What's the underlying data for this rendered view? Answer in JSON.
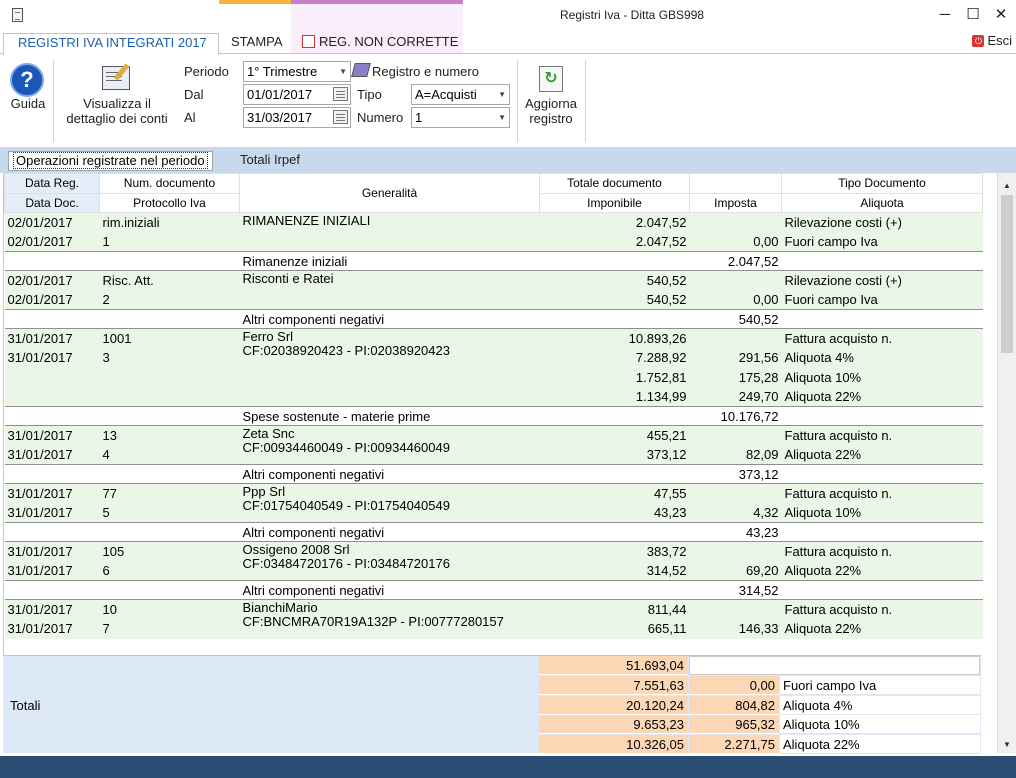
{
  "window": {
    "title": "Registri Iva - Ditta GBS998",
    "min": "─",
    "max": "☐",
    "close": "✕"
  },
  "tabs": {
    "main": "REGISTRI IVA INTEGRATI 2017",
    "stampa": "STAMPA",
    "reg": "REG. NON CORRETTE",
    "esci": "Esci"
  },
  "ribbon": {
    "guida": "Guida",
    "visualizza1": "Visualizza il",
    "visualizza2": "dettaglio dei conti",
    "periodo_label": "Periodo",
    "periodo": "1° Trimestre",
    "dal_label": "Dal",
    "dal": "01/01/2017",
    "al_label": "Al",
    "al": "31/03/2017",
    "registro_label": "Registro e numero",
    "tipo_label": "Tipo",
    "tipo": "A=Acquisti",
    "numero_label": "Numero",
    "numero": "1",
    "aggiorna1": "Aggiorna",
    "aggiorna2": "registro"
  },
  "subtabs": {
    "active": "Operazioni registrate nel periodo",
    "other": "Totali Irpef"
  },
  "headers": {
    "data_reg": "Data Reg.",
    "num_doc": "Num. documento",
    "generalita": "Generalità",
    "totale_doc": "Totale documento",
    "tipo_doc": "Tipo Documento",
    "data_doc": "Data Doc.",
    "protocollo": "Protocollo Iva",
    "imponibile": "Imponibile",
    "imposta": "Imposta",
    "aliquota": "Aliquota"
  },
  "rows": {
    "r1": [
      "02/01/2017",
      "rim.iniziali",
      "RIMANENZE INIZIALI",
      "",
      "2.047,52",
      "",
      "Rilevazione costi (+)"
    ],
    "r2": [
      "02/01/2017",
      "1",
      "",
      "",
      "2.047,52",
      "0,00",
      "Fuori campo Iva"
    ],
    "s1": [
      "Rimanenze iniziali",
      "2.047,52"
    ],
    "r3": [
      "02/01/2017",
      "Risc. Att.",
      "Risconti e Ratei",
      "",
      "540,52",
      "",
      "Rilevazione costi (+)"
    ],
    "r4": [
      "02/01/2017",
      "2",
      "",
      "",
      "540,52",
      "0,00",
      "Fuori campo Iva"
    ],
    "s2": [
      "Altri componenti negativi",
      "540,52"
    ],
    "r5": [
      "31/01/2017",
      "1001",
      "Ferro Srl",
      "CF:02038920423 - PI:02038920423",
      "10.893,26",
      "",
      "Fattura acquisto n."
    ],
    "r6": [
      "31/01/2017",
      "3",
      "",
      "",
      "7.288,92",
      "291,56",
      "Aliquota 4%"
    ],
    "r7": [
      "",
      "",
      "",
      "",
      "1.752,81",
      "175,28",
      "Aliquota 10%"
    ],
    "r8": [
      "",
      "",
      "",
      "",
      "1.134,99",
      "249,70",
      "Aliquota 22%"
    ],
    "s3": [
      "Spese sostenute - materie prime",
      "10.176,72"
    ],
    "r9": [
      "31/01/2017",
      "13",
      "Zeta Snc",
      "CF:00934460049 - PI:00934460049",
      "455,21",
      "",
      "Fattura acquisto n."
    ],
    "r10": [
      "31/01/2017",
      "4",
      "",
      "",
      "373,12",
      "82,09",
      "Aliquota 22%"
    ],
    "s4": [
      "Altri componenti negativi",
      "373,12"
    ],
    "r11": [
      "31/01/2017",
      "77",
      "Ppp Srl",
      "CF:01754040549 - PI:01754040549",
      "47,55",
      "",
      "Fattura acquisto n."
    ],
    "r12": [
      "31/01/2017",
      "5",
      "",
      "",
      "43,23",
      "4,32",
      "Aliquota 10%"
    ],
    "s5": [
      "Altri componenti negativi",
      "43,23"
    ],
    "r13": [
      "31/01/2017",
      "105",
      "Ossigeno 2008 Srl",
      "CF:03484720176 - PI:03484720176",
      "383,72",
      "",
      "Fattura acquisto n."
    ],
    "r14": [
      "31/01/2017",
      "6",
      "",
      "",
      "314,52",
      "69,20",
      "Aliquota 22%"
    ],
    "s6": [
      "Altri componenti negativi",
      "314,52"
    ],
    "r15": [
      "31/01/2017",
      "10",
      "BianchiMario",
      "CF:BNCMRA70R19A132P - PI:00777280157",
      "811,44",
      "",
      "Fattura acquisto n."
    ],
    "r16": [
      "31/01/2017",
      "7",
      "",
      "",
      "665,11",
      "146,33",
      "Aliquota 22%"
    ]
  },
  "totals": {
    "label": "Totali",
    "grand": "51.693,04",
    "lines": [
      {
        "imponibile": "7.551,63",
        "imposta": "0,00",
        "aliquota": "Fuori campo Iva"
      },
      {
        "imponibile": "20.120,24",
        "imposta": "804,82",
        "aliquota": "Aliquota 4%"
      },
      {
        "imponibile": "9.653,23",
        "imposta": "965,32",
        "aliquota": "Aliquota 10%"
      },
      {
        "imponibile": "10.326,05",
        "imposta": "2.271,75",
        "aliquota": "Aliquota 22%"
      }
    ]
  },
  "colors": {
    "row_green": "#eaf7e6",
    "totals_blue": "#dde9f6",
    "totals_orange": "#fbd7b5",
    "status_bar": "#2a4d74",
    "tab_blue": "#1e5fa8"
  }
}
